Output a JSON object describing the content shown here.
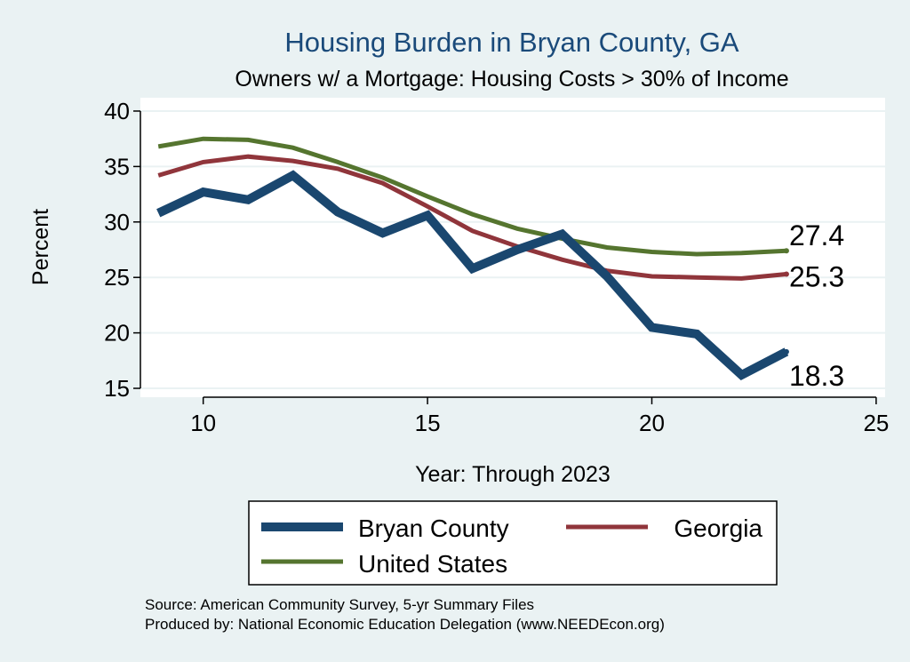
{
  "chart_data": {
    "type": "line",
    "title": "Housing Burden in Bryan County, GA",
    "subtitle": "Owners w/ a Mortgage: Housing Costs > 30% of Income",
    "xlabel": "Year: Through 2023",
    "ylabel": "Percent",
    "xlim": [
      8.6,
      25.2
    ],
    "ylim": [
      14.2,
      41.2
    ],
    "xticks": [
      10,
      15,
      20,
      25
    ],
    "yticks": [
      15,
      20,
      25,
      30,
      35,
      40
    ],
    "grid": true,
    "legend_position": "bottom",
    "x": [
      9,
      10,
      11,
      12,
      13,
      14,
      15,
      16,
      17,
      18,
      19,
      20,
      21,
      22,
      23
    ],
    "series": [
      {
        "name": "Bryan County",
        "color": "#1a476f",
        "values": [
          30.8,
          32.7,
          32.0,
          34.2,
          30.9,
          29.0,
          30.6,
          25.8,
          27.5,
          28.9,
          25.1,
          20.5,
          19.9,
          16.2,
          18.3
        ],
        "end_label": "18.3"
      },
      {
        "name": "Georgia",
        "color": "#90353b",
        "values": [
          34.2,
          35.4,
          35.9,
          35.5,
          34.8,
          33.5,
          31.4,
          29.2,
          27.8,
          26.6,
          25.6,
          25.1,
          25.0,
          24.9,
          25.3
        ],
        "end_label": "25.3"
      },
      {
        "name": "United States",
        "color": "#55752f",
        "values": [
          36.8,
          37.5,
          37.4,
          36.7,
          35.4,
          34.0,
          32.3,
          30.7,
          29.4,
          28.5,
          27.7,
          27.3,
          27.1,
          27.2,
          27.4
        ],
        "end_label": "27.4"
      }
    ]
  },
  "source": {
    "line1": "Source: American Community Survey, 5-yr Summary Files",
    "line2": "Produced by: National Economic Education Delegation (www.NEEDEcon.org)"
  }
}
